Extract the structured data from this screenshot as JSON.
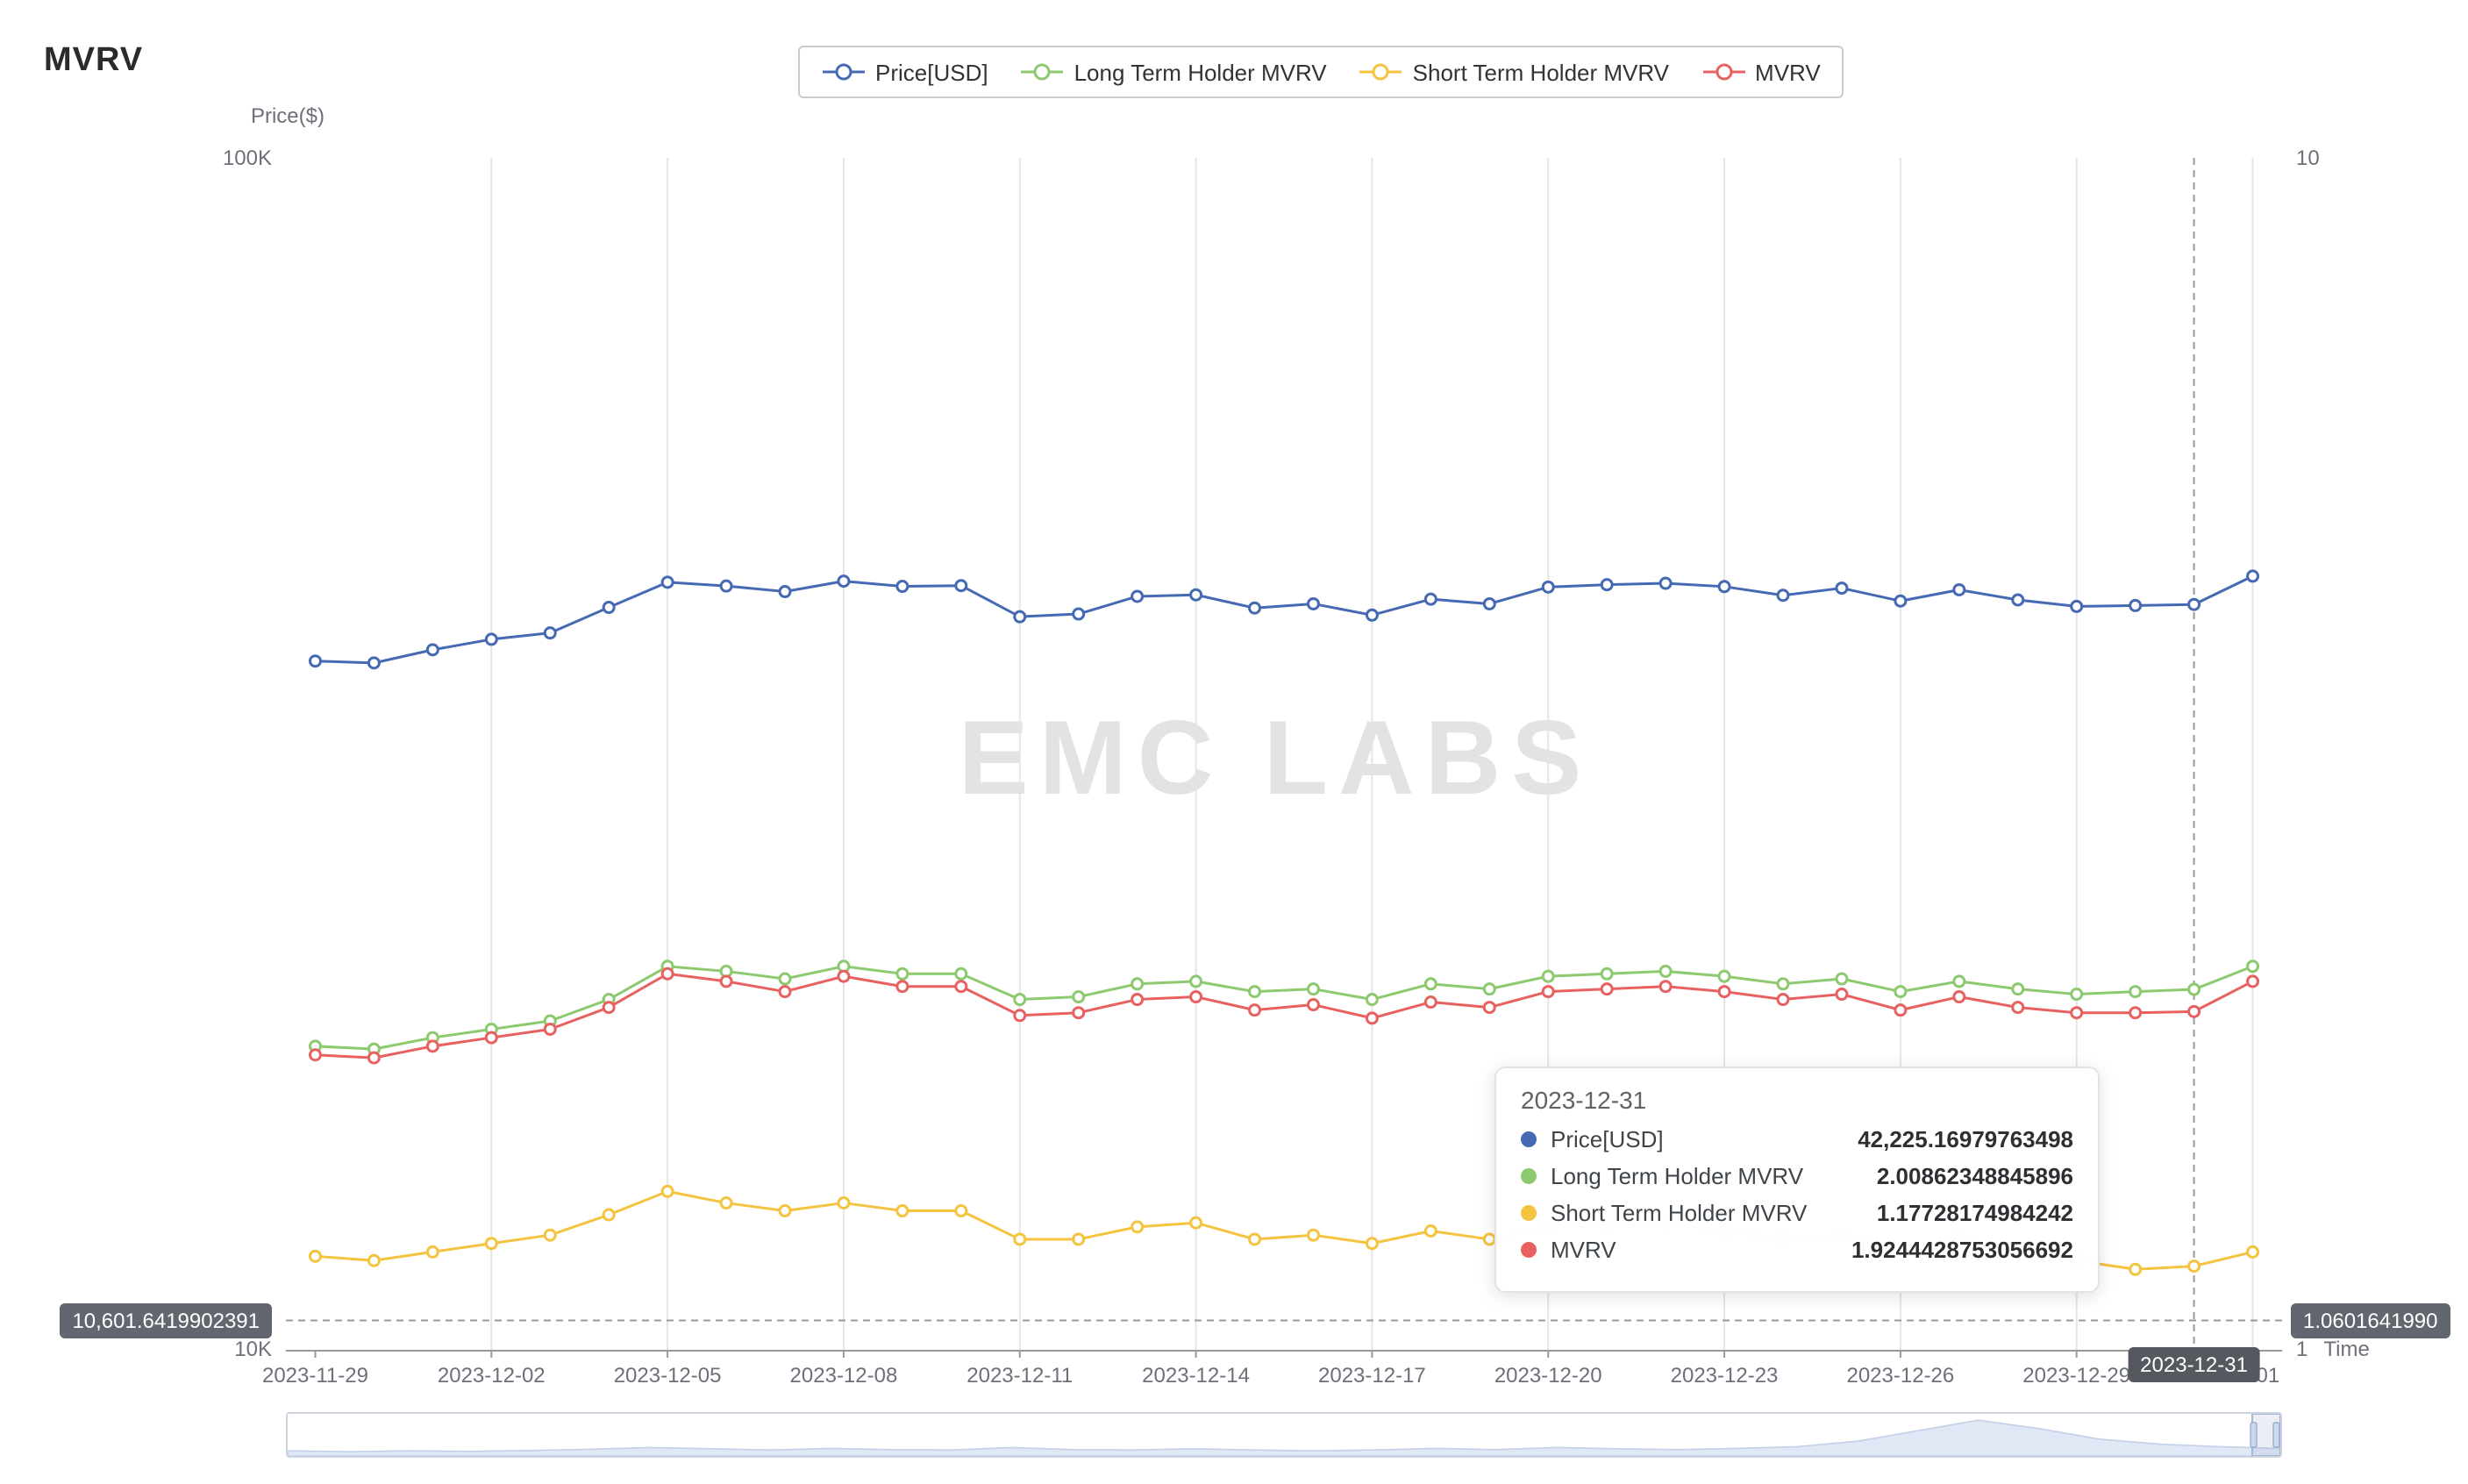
{
  "page": {
    "title": "MVRV",
    "watermark": "EMC LABS"
  },
  "legend": {
    "items": [
      {
        "label": "Price[USD]",
        "color": "#4569b2"
      },
      {
        "label": "Long Term Holder MVRV",
        "color": "#8cc96f"
      },
      {
        "label": "Short Term Holder MVRV",
        "color": "#f4c33f"
      },
      {
        "label": "MVRV",
        "color": "#e86161"
      }
    ]
  },
  "axes": {
    "left_title": "Price($)",
    "left_top": "100K",
    "left_bottom": "10K",
    "right_top": "10",
    "right_bottom": "1",
    "x_axis_name": "Time"
  },
  "crosshair": {
    "index": 32,
    "ratio_value": 1.060164199,
    "left_badge": "10,601.6419902391",
    "right_badge": "1.0601641990",
    "x_badge": "2023-12-31"
  },
  "tooltip": {
    "date": "2023-12-31",
    "rows": [
      {
        "label": "Price[USD]",
        "value": "42,225.16979763498",
        "color": "#4569b2"
      },
      {
        "label": "Long Term Holder MVRV",
        "value": "2.00862348845896",
        "color": "#8cc96f"
      },
      {
        "label": "Short Term Holder MVRV",
        "value": "1.17728174984242",
        "color": "#f4c33f"
      },
      {
        "label": "MVRV",
        "value": "1.9244428753056692",
        "color": "#e86161"
      }
    ]
  },
  "chart_data": {
    "type": "line",
    "title": "MVRV",
    "x": [
      "2023-11-29",
      "2023-11-30",
      "2023-12-01",
      "2023-12-02",
      "2023-12-03",
      "2023-12-04",
      "2023-12-05",
      "2023-12-06",
      "2023-12-07",
      "2023-12-08",
      "2023-12-09",
      "2023-12-10",
      "2023-12-11",
      "2023-12-12",
      "2023-12-13",
      "2023-12-14",
      "2023-12-15",
      "2023-12-16",
      "2023-12-17",
      "2023-12-18",
      "2023-12-19",
      "2023-12-20",
      "2023-12-21",
      "2023-12-22",
      "2023-12-23",
      "2023-12-24",
      "2023-12-25",
      "2023-12-26",
      "2023-12-27",
      "2023-12-28",
      "2023-12-29",
      "2023-12-30",
      "2023-12-31",
      "2024-01-01"
    ],
    "x_tick_indices": [
      0,
      3,
      6,
      9,
      12,
      15,
      18,
      21,
      24,
      27,
      30,
      33
    ],
    "x_tick_labels": [
      "2023-11-29",
      "2023-12-02",
      "2023-12-05",
      "2023-12-08",
      "2023-12-11",
      "2023-12-14",
      "2023-12-17",
      "2023-12-20",
      "2023-12-23",
      "2023-12-26",
      "2023-12-29",
      "01-01"
    ],
    "left_axis": {
      "label": "Price($)",
      "scale": "log",
      "min": 10000,
      "max": 100000
    },
    "right_axis": {
      "label": "Time",
      "scale": "log",
      "min": 1,
      "max": 10
    },
    "grid": true,
    "legend_position": "top",
    "series": [
      {
        "name": "Price[USD]",
        "axis": "left",
        "color": "#4569b2",
        "values": [
          37858,
          37720,
          38690,
          39480,
          39970,
          41990,
          44080,
          43760,
          43290,
          44170,
          43730,
          43790,
          41240,
          41460,
          42890,
          43020,
          41940,
          42280,
          41370,
          42660,
          42280,
          43670,
          43870,
          43990,
          43710,
          42980,
          43580,
          42510,
          43440,
          42600,
          42070,
          42140,
          42225.16979763498,
          44600
        ]
      },
      {
        "name": "Long Term Holder MVRV",
        "axis": "right",
        "color": "#8cc96f",
        "values": [
          1.8,
          1.79,
          1.83,
          1.86,
          1.89,
          1.97,
          2.1,
          2.08,
          2.05,
          2.1,
          2.07,
          2.07,
          1.97,
          1.98,
          2.03,
          2.04,
          2.0,
          2.01,
          1.97,
          2.03,
          2.01,
          2.06,
          2.07,
          2.08,
          2.06,
          2.03,
          2.05,
          2.0,
          2.04,
          2.01,
          1.99,
          2.0,
          2.00862348845896,
          2.1
        ]
      },
      {
        "name": "Short Term Holder MVRV",
        "axis": "right",
        "color": "#f4c33f",
        "values": [
          1.2,
          1.19,
          1.21,
          1.23,
          1.25,
          1.3,
          1.36,
          1.33,
          1.31,
          1.33,
          1.31,
          1.31,
          1.24,
          1.24,
          1.27,
          1.28,
          1.24,
          1.25,
          1.23,
          1.26,
          1.24,
          1.27,
          1.27,
          1.28,
          1.26,
          1.24,
          1.25,
          1.22,
          1.24,
          1.21,
          1.19,
          1.17,
          1.17728174984242,
          1.21
        ]
      },
      {
        "name": "MVRV",
        "axis": "right",
        "color": "#e86161",
        "values": [
          1.77,
          1.76,
          1.8,
          1.83,
          1.86,
          1.94,
          2.07,
          2.04,
          2.0,
          2.06,
          2.02,
          2.02,
          1.91,
          1.92,
          1.97,
          1.98,
          1.93,
          1.95,
          1.9,
          1.96,
          1.94,
          2.0,
          2.01,
          2.02,
          2.0,
          1.97,
          1.99,
          1.93,
          1.98,
          1.94,
          1.92,
          1.92,
          1.9244428753056693,
          2.04
        ]
      }
    ],
    "minimap": {
      "values": [
        0.12,
        0.1,
        0.12,
        0.11,
        0.13,
        0.16,
        0.2,
        0.17,
        0.14,
        0.18,
        0.15,
        0.14,
        0.2,
        0.15,
        0.14,
        0.17,
        0.14,
        0.12,
        0.14,
        0.18,
        0.15,
        0.2,
        0.17,
        0.15,
        0.18,
        0.22,
        0.35,
        0.6,
        0.85,
        0.65,
        0.4,
        0.28,
        0.22,
        0.18
      ]
    }
  },
  "colors": {
    "badge_bg": "#62666e",
    "gridline": "#e5e5e5",
    "axis_line": "#999999",
    "crosshair": "#9a9a9a",
    "watermark": "#e3e3e3"
  }
}
